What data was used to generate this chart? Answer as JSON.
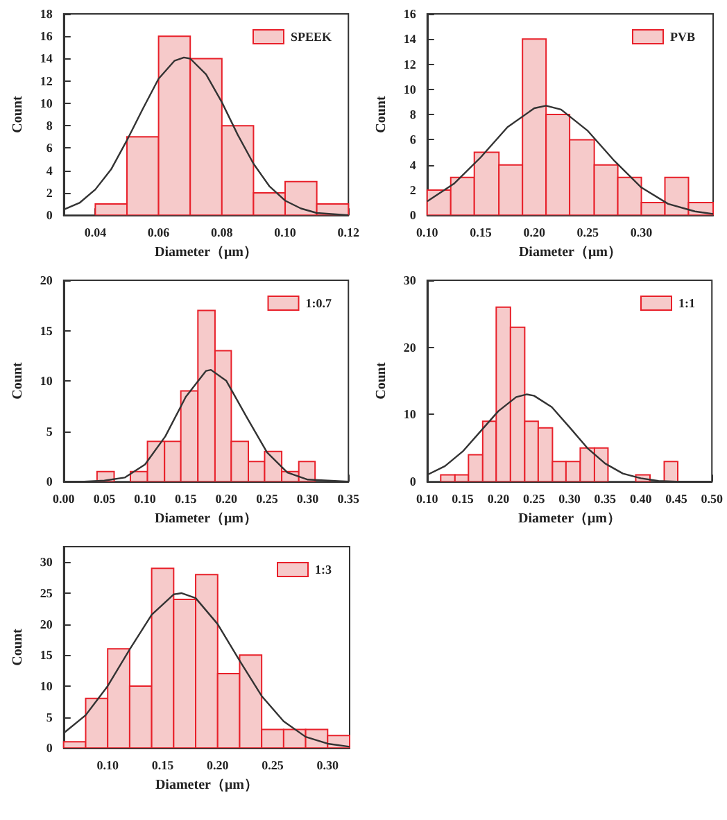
{
  "chart_data": [
    {
      "type": "histogram",
      "xlabel": "Diameter（μm）",
      "ylabel": "Count",
      "legend": "top right",
      "grid": false,
      "marker": "none",
      "xlim": [
        0.03,
        0.12
      ],
      "xticks": [
        0.04,
        0.06,
        0.08,
        {
          "value": 0.1,
          "label": "0.10"
        },
        0.12
      ],
      "ylim": [
        0,
        18
      ],
      "yticks": [
        0,
        2,
        4,
        6,
        8,
        10,
        12,
        14,
        16,
        18
      ],
      "bins": [
        0.04,
        0.05,
        0.06,
        0.07,
        0.08,
        0.09,
        0.1,
        0.11,
        0.12
      ],
      "series": [
        {
          "name": "SPEEK",
          "color": "#f6caca",
          "values": [
            1,
            7,
            16,
            14,
            8,
            2,
            3,
            1
          ]
        },
        {
          "type": "line",
          "color": "#333333",
          "x": [
            0.03,
            0.035,
            0.04,
            0.045,
            0.05,
            0.055,
            0.06,
            0.065,
            0.068,
            0.07,
            0.075,
            0.08,
            0.085,
            0.09,
            0.095,
            0.1,
            0.105,
            0.11,
            0.12
          ],
          "values": [
            0.5,
            1.1,
            2.3,
            4.1,
            6.7,
            9.5,
            12.2,
            13.8,
            14.1,
            14.0,
            12.6,
            10.1,
            7.2,
            4.6,
            2.6,
            1.3,
            0.6,
            0.2,
            0.0
          ]
        }
      ]
    },
    {
      "type": "histogram",
      "xlabel": "Diameter（μm）",
      "ylabel": "Count",
      "legend": "top right",
      "grid": false,
      "marker": "none",
      "xlim": [
        0.1,
        0.367
      ],
      "xticks": [
        {
          "value": 0.1,
          "label": "0.10"
        },
        0.15,
        {
          "value": 0.2,
          "label": "0.20"
        },
        0.25,
        {
          "value": 0.3,
          "label": "0.30"
        }
      ],
      "ylim": [
        0,
        16
      ],
      "yticks": [
        0,
        2,
        4,
        6,
        8,
        10,
        12,
        14,
        16
      ],
      "bins": [
        0.1,
        0.122,
        0.144,
        0.167,
        0.189,
        0.211,
        0.233,
        0.256,
        0.278,
        0.3,
        0.322,
        0.344,
        0.367
      ],
      "series": [
        {
          "name": "PVB",
          "color": "#f6caca",
          "values": [
            2,
            3,
            5,
            4,
            14,
            8,
            6,
            4,
            3,
            1,
            3,
            1
          ]
        },
        {
          "type": "line",
          "color": "#333333",
          "x": [
            0.1,
            0.125,
            0.15,
            0.175,
            0.2,
            0.211,
            0.225,
            0.25,
            0.275,
            0.3,
            0.325,
            0.35,
            0.367
          ],
          "values": [
            1.1,
            2.5,
            4.6,
            7.0,
            8.5,
            8.7,
            8.4,
            6.7,
            4.3,
            2.2,
            0.9,
            0.3,
            0.1
          ]
        }
      ]
    },
    {
      "type": "histogram",
      "xlabel": "Diameter（μm）",
      "ylabel": "Count",
      "legend": "top right",
      "grid": false,
      "marker": "none",
      "xlim": [
        0,
        0.35
      ],
      "xticks": [
        {
          "value": 0,
          "label": "0.00"
        },
        0.05,
        {
          "value": 0.1,
          "label": "0.10"
        },
        0.15,
        {
          "value": 0.2,
          "label": "0.20"
        },
        0.25,
        {
          "value": 0.3,
          "label": "0.30"
        },
        0.35
      ],
      "ylim": [
        0,
        20
      ],
      "yticks": [
        0,
        5,
        10,
        15,
        20
      ],
      "bins": [
        0.041,
        0.062,
        0.082,
        0.103,
        0.124,
        0.144,
        0.165,
        0.186,
        0.206,
        0.227,
        0.247,
        0.268,
        0.289,
        0.309
      ],
      "series": [
        {
          "name": "1:0.7",
          "color": "#f6caca",
          "values": [
            1,
            0,
            1,
            4,
            4,
            9,
            17,
            13,
            4,
            2,
            3,
            1,
            2
          ]
        },
        {
          "type": "line",
          "color": "#333333",
          "x": [
            0,
            0.025,
            0.05,
            0.075,
            0.1,
            0.125,
            0.15,
            0.175,
            0.181,
            0.2,
            0.225,
            0.25,
            0.275,
            0.3,
            0.35
          ],
          "values": [
            0.0,
            0.0,
            0.1,
            0.4,
            1.7,
            4.5,
            8.4,
            11.0,
            11.1,
            10.0,
            6.4,
            2.9,
            0.9,
            0.2,
            0.0
          ]
        }
      ]
    },
    {
      "type": "histogram",
      "xlabel": "Diameter（μm）",
      "ylabel": "Count",
      "legend": "top right",
      "grid": false,
      "marker": "none",
      "xlim": [
        0.1,
        0.5
      ],
      "xticks": [
        {
          "value": 0.1,
          "label": "0.10"
        },
        0.15,
        {
          "value": 0.2,
          "label": "0.20"
        },
        0.25,
        {
          "value": 0.3,
          "label": "0.30"
        },
        0.35,
        {
          "value": 0.4,
          "label": "0.40"
        },
        0.45,
        {
          "value": 0.5,
          "label": "0.50"
        }
      ],
      "ylim": [
        0,
        30
      ],
      "yticks": [
        0,
        10,
        20,
        30
      ],
      "bins": [
        0.119,
        0.139,
        0.158,
        0.178,
        0.197,
        0.217,
        0.237,
        0.256,
        0.276,
        0.295,
        0.315,
        0.335,
        0.354,
        0.393,
        0.413,
        0.433,
        0.452
      ],
      "series": [
        {
          "name": "1:1",
          "color": "#f6caca",
          "values": [
            1,
            1,
            4,
            9,
            26,
            23,
            9,
            8,
            3,
            3,
            5,
            5,
            0,
            1,
            0,
            3
          ]
        },
        {
          "type": "line",
          "color": "#333333",
          "x": [
            0.1,
            0.125,
            0.15,
            0.175,
            0.2,
            0.225,
            0.24,
            0.25,
            0.275,
            0.3,
            0.325,
            0.35,
            0.375,
            0.4,
            0.425,
            0.45,
            0.5
          ],
          "values": [
            1.0,
            2.3,
            4.5,
            7.5,
            10.5,
            12.6,
            13.0,
            12.8,
            11.1,
            8.1,
            5.0,
            2.7,
            1.2,
            0.5,
            0.1,
            0.0,
            0.0
          ]
        }
      ]
    },
    {
      "type": "histogram",
      "xlabel": "Diameter（μm）",
      "ylabel": "Count",
      "legend": "top right",
      "grid": false,
      "marker": "none",
      "xlim": [
        0.06,
        0.32
      ],
      "xticks": [
        {
          "value": 0.1,
          "label": "0.10"
        },
        0.15,
        {
          "value": 0.2,
          "label": "0.20"
        },
        0.25,
        {
          "value": 0.3,
          "label": "0.30"
        }
      ],
      "ylim": [
        0,
        32.5
      ],
      "yticks": [
        0,
        5,
        10,
        15,
        20,
        25,
        30
      ],
      "bins": [
        0.06,
        0.08,
        0.1,
        0.12,
        0.14,
        0.16,
        0.18,
        0.2,
        0.22,
        0.24,
        0.26,
        0.28,
        0.3,
        0.32
      ],
      "series": [
        {
          "name": "1:3",
          "color": "#f6caca",
          "values": [
            1,
            8,
            16,
            10,
            29,
            24,
            28,
            12,
            15,
            3,
            3,
            3,
            2
          ]
        },
        {
          "type": "line",
          "color": "#333333",
          "x": [
            0.06,
            0.08,
            0.1,
            0.12,
            0.14,
            0.16,
            0.167,
            0.18,
            0.2,
            0.22,
            0.24,
            0.26,
            0.28,
            0.3,
            0.32
          ],
          "values": [
            2.4,
            5.3,
            10.0,
            15.9,
            21.5,
            24.8,
            25.0,
            24.2,
            20.0,
            14.1,
            8.4,
            4.3,
            1.8,
            0.7,
            0.2
          ]
        }
      ]
    }
  ]
}
